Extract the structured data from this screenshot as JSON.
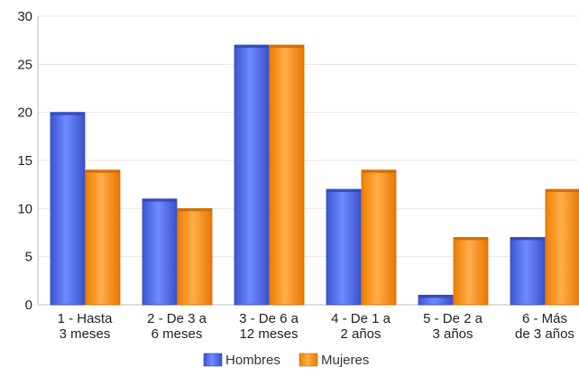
{
  "chart_data": {
    "type": "bar",
    "categories": [
      [
        "1 - Hasta",
        "3 meses"
      ],
      [
        "2 - De 3 a",
        "6 meses"
      ],
      [
        "3 - De 6 a",
        "12 meses"
      ],
      [
        "4 - De 1 a",
        "2 años"
      ],
      [
        "5 - De 2 a",
        "3 años"
      ],
      [
        "6 - Más",
        "de 3 años"
      ]
    ],
    "series": [
      {
        "name": "Hombres",
        "values": [
          20,
          11,
          27,
          12,
          1,
          7
        ],
        "color": "#4a66e0"
      },
      {
        "name": "Mujeres",
        "values": [
          14,
          10,
          27,
          14,
          7,
          12
        ],
        "color": "#f58a0b"
      }
    ],
    "ylim": [
      0,
      30
    ],
    "yticks": [
      0,
      5,
      10,
      15,
      20,
      25,
      30
    ],
    "grid": true,
    "legend": "bottom-center"
  }
}
